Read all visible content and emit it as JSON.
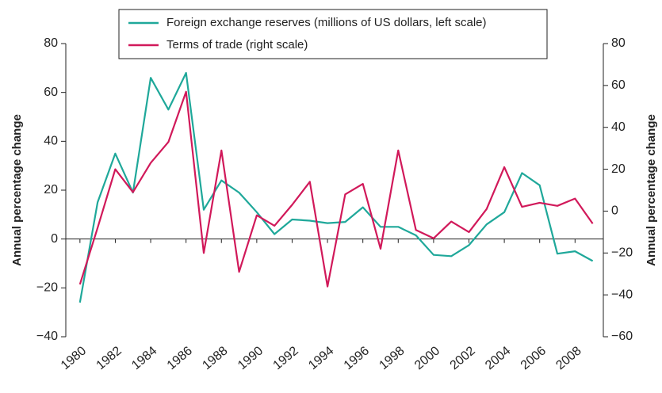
{
  "chart_data": {
    "type": "line",
    "y_label": "Annual percentage change",
    "y2_label": "Annual percentage change",
    "x": [
      1980,
      1981,
      1982,
      1983,
      1984,
      1985,
      1986,
      1987,
      1988,
      1989,
      1990,
      1991,
      1992,
      1993,
      1994,
      1995,
      1996,
      1997,
      1998,
      1999,
      2000,
      2001,
      2002,
      2003,
      2004,
      2005,
      2006,
      2007,
      2008,
      2009
    ],
    "xlim": [
      1979.2,
      2009.6
    ],
    "xticks": [
      1980,
      1982,
      1984,
      1986,
      1988,
      1990,
      1992,
      1994,
      1996,
      1998,
      2000,
      2002,
      2004,
      2006,
      2008
    ],
    "ylim": [
      -40,
      80
    ],
    "yticks": [
      {
        "value": -40,
        "label": "−40"
      },
      {
        "value": -20,
        "label": "−20"
      },
      0,
      20,
      40,
      60,
      80
    ],
    "y2lim": [
      -60,
      80
    ],
    "y2ticks": [
      {
        "value": -60,
        "label": "−60"
      },
      {
        "value": -40,
        "label": "−40"
      },
      {
        "value": -20,
        "label": "−20"
      },
      0,
      20,
      40,
      60,
      80
    ],
    "legend": "top",
    "series": [
      {
        "name": "Foreign exchange reserves (millions of US dollars, left scale)",
        "color": "#1fa89a",
        "values": [
          -26,
          15,
          35,
          19,
          66,
          53,
          68,
          12,
          24,
          19,
          11,
          2,
          8,
          7.5,
          6.5,
          7,
          13,
          5,
          5,
          1.5,
          -6.5,
          -7,
          -2.5,
          6,
          11,
          27,
          22,
          -6,
          -5,
          -9
        ]
      },
      {
        "name": "Terms of trade (right scale)",
        "color": "#d1195a",
        "axis": "y2",
        "values": [
          -35,
          -8,
          20,
          9,
          23,
          33,
          57,
          -20,
          29,
          -29,
          -2,
          -7,
          3,
          14,
          -36,
          8,
          13,
          -18,
          29,
          -9,
          -13,
          -5,
          -10,
          1,
          21,
          2,
          4,
          2.5,
          6,
          -6
        ]
      }
    ]
  }
}
